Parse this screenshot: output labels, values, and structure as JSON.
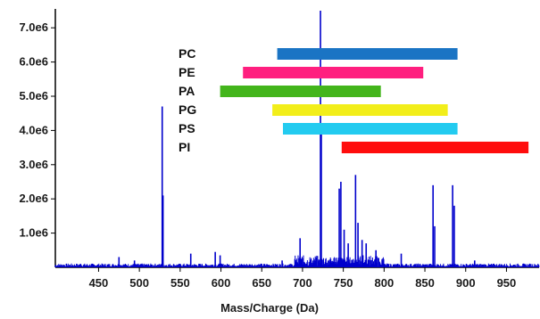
{
  "chart_data": {
    "type": "line",
    "title": "",
    "xlabel": "Mass/Charge (Da)",
    "ylabel": "",
    "xlim": [
      397,
      990
    ],
    "ylim": [
      0,
      7500000
    ],
    "x_ticks": [
      450,
      500,
      550,
      600,
      650,
      700,
      750,
      800,
      850,
      900,
      950
    ],
    "x_tick_labels": [
      "450",
      "500",
      "550",
      "600",
      "650",
      "700",
      "750",
      "800",
      "850",
      "900",
      "950"
    ],
    "y_ticks": [
      1000000,
      2000000,
      3000000,
      4000000,
      5000000,
      6000000,
      7000000
    ],
    "y_tick_labels": [
      "1.0e6",
      "2.0e6",
      "3.0e6",
      "4.0e6",
      "5.0e6",
      "6.0e6",
      "7.0e6"
    ],
    "grid": false,
    "series": [
      {
        "color": "#0000cc",
        "peaks": [
          {
            "x": 428,
            "y": 100000
          },
          {
            "x": 475,
            "y": 300000
          },
          {
            "x": 494,
            "y": 200000
          },
          {
            "x": 528,
            "y": 4700000
          },
          {
            "x": 529,
            "y": 2100000
          },
          {
            "x": 563,
            "y": 400000
          },
          {
            "x": 593,
            "y": 450000
          },
          {
            "x": 599,
            "y": 350000
          },
          {
            "x": 675,
            "y": 200000
          },
          {
            "x": 697,
            "y": 850000
          },
          {
            "x": 722,
            "y": 7500000
          },
          {
            "x": 723,
            "y": 4200000
          },
          {
            "x": 745,
            "y": 2300000
          },
          {
            "x": 747,
            "y": 2500000
          },
          {
            "x": 751,
            "y": 1100000
          },
          {
            "x": 756,
            "y": 700000
          },
          {
            "x": 765,
            "y": 2700000
          },
          {
            "x": 768,
            "y": 1300000
          },
          {
            "x": 773,
            "y": 800000
          },
          {
            "x": 778,
            "y": 700000
          },
          {
            "x": 790,
            "y": 500000
          },
          {
            "x": 821,
            "y": 400000
          },
          {
            "x": 860,
            "y": 2400000
          },
          {
            "x": 862,
            "y": 1200000
          },
          {
            "x": 884,
            "y": 2400000
          },
          {
            "x": 886,
            "y": 1800000
          },
          {
            "x": 911,
            "y": 200000
          }
        ]
      }
    ],
    "ranges": [
      {
        "label": "PC",
        "start": 669,
        "end": 890,
        "color": "#1a74c4"
      },
      {
        "label": "PE",
        "start": 627,
        "end": 848,
        "color": "#ff1f7f"
      },
      {
        "label": "PA",
        "start": 599,
        "end": 796,
        "color": "#43b51b"
      },
      {
        "label": "PG",
        "start": 663,
        "end": 878,
        "color": "#f2ee1a"
      },
      {
        "label": "PS",
        "start": 676,
        "end": 890,
        "color": "#23cbf0"
      },
      {
        "label": "PI",
        "start": 748,
        "end": 977,
        "color": "#ff0d0d"
      }
    ]
  }
}
